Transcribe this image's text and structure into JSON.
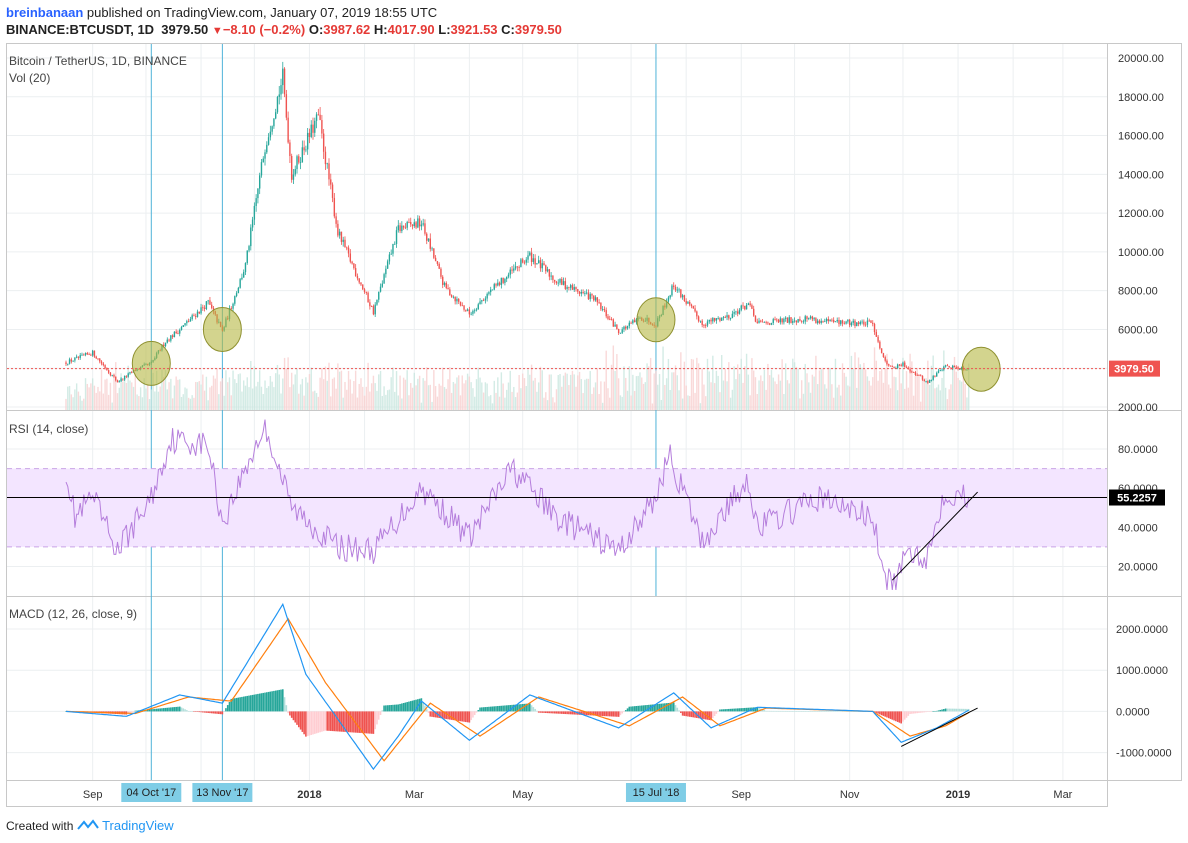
{
  "header": {
    "author": "breinbanaan",
    "published": " published on TradingView.com, January 07, 2019 18:55 UTC",
    "symbol": "BINANCE:BTCUSDT, 1D",
    "last": "3979.50",
    "change": "−8.10 (−0.2%)",
    "o_label": "O:",
    "o": "3987.62",
    "h_label": "H:",
    "h": "4017.90",
    "l_label": "L:",
    "l": "3921.53",
    "c_label": "C:",
    "c": "3979.50"
  },
  "panels": {
    "price_title": "Bitcoin / TetherUS, 1D, BINANCE",
    "vol_title": "Vol (20)",
    "rsi_title": "RSI (14, close)",
    "macd_title": "MACD (12, 26, close, 9)"
  },
  "colors": {
    "up": "#26a69a",
    "down": "#ef5350",
    "rsi": "#b57edc",
    "rsi_band": "#f3e5ff",
    "macd": "#2196f3",
    "signal": "#ff7f0e",
    "grid": "#eceff1",
    "marker_line": "#4fb3d9",
    "circle_fill": "#b5b843",
    "price_label": "#ef5350"
  },
  "x_axis_labels": [
    "Sep",
    "04 Oct '17",
    "13 Nov '17",
    "2018",
    "Mar",
    "May",
    "15 Jul '18",
    "Sep",
    "Nov",
    "2019",
    "Mar"
  ],
  "footer": {
    "created_with": "Created with",
    "brand": "TradingView"
  },
  "chart_data": [
    {
      "type": "candlestick",
      "title": "Bitcoin / TetherUS, 1D, BINANCE",
      "y_ticks": [
        "20000.00",
        "18000.00",
        "16000.00",
        "14000.00",
        "12000.00",
        "10000.00",
        "8000.00",
        "6000.00",
        "2000.00"
      ],
      "ylim": [
        2000,
        20500
      ],
      "last_price_label": "3979.50",
      "last_price": 3979.5,
      "anchors": [
        [
          "2017-08-17",
          4300
        ],
        [
          "2017-09-01",
          4800
        ],
        [
          "2017-09-15",
          3300
        ],
        [
          "2017-09-25",
          3900
        ],
        [
          "2017-10-04",
          4250
        ],
        [
          "2017-10-12",
          5400
        ],
        [
          "2017-10-20",
          6000
        ],
        [
          "2017-11-05",
          7400
        ],
        [
          "2017-11-13",
          5900
        ],
        [
          "2017-11-26",
          9300
        ],
        [
          "2017-12-07",
          15500
        ],
        [
          "2017-12-17",
          19000
        ],
        [
          "2017-12-22",
          14000
        ],
        [
          "2018-01-06",
          17000
        ],
        [
          "2018-01-17",
          11000
        ],
        [
          "2018-02-06",
          6900
        ],
        [
          "2018-02-20",
          11200
        ],
        [
          "2018-03-05",
          11500
        ],
        [
          "2018-03-18",
          8200
        ],
        [
          "2018-04-01",
          6800
        ],
        [
          "2018-04-12",
          7900
        ],
        [
          "2018-05-05",
          9800
        ],
        [
          "2018-05-20",
          8500
        ],
        [
          "2018-06-10",
          7600
        ],
        [
          "2018-06-24",
          5900
        ],
        [
          "2018-07-07",
          6600
        ],
        [
          "2018-07-15",
          6300
        ],
        [
          "2018-07-25",
          8300
        ],
        [
          "2018-08-10",
          6300
        ],
        [
          "2018-08-25",
          6700
        ],
        [
          "2018-09-05",
          7300
        ],
        [
          "2018-09-10",
          6300
        ],
        [
          "2018-10-10",
          6600
        ],
        [
          "2018-10-15",
          6400
        ],
        [
          "2018-11-14",
          6300
        ],
        [
          "2018-11-20",
          4500
        ],
        [
          "2018-11-25",
          4000
        ],
        [
          "2018-12-01",
          4200
        ],
        [
          "2018-12-15",
          3250
        ],
        [
          "2018-12-24",
          4100
        ],
        [
          "2019-01-07",
          3979.5
        ]
      ],
      "volume_series": "Vol (20)"
    },
    {
      "type": "line",
      "title": "RSI (14, close)",
      "y_ticks": [
        "80.0000",
        "60.0000",
        "40.0000",
        "20.0000"
      ],
      "ylim": [
        5,
        98
      ],
      "band": [
        30,
        70
      ],
      "current_label": "55.2257",
      "current": 55.2257,
      "anchors": [
        [
          "2017-08-17",
          70
        ],
        [
          "2017-08-22",
          45
        ],
        [
          "2017-09-01",
          55
        ],
        [
          "2017-09-15",
          28
        ],
        [
          "2017-10-04",
          55
        ],
        [
          "2017-10-15",
          85
        ],
        [
          "2017-11-05",
          82
        ],
        [
          "2017-11-13",
          42
        ],
        [
          "2017-11-26",
          70
        ],
        [
          "2017-12-07",
          92
        ],
        [
          "2017-12-22",
          50
        ],
        [
          "2018-01-17",
          30
        ],
        [
          "2018-02-06",
          28
        ],
        [
          "2018-03-05",
          60
        ],
        [
          "2018-04-01",
          35
        ],
        [
          "2018-04-25",
          70
        ],
        [
          "2018-05-20",
          45
        ],
        [
          "2018-06-24",
          28
        ],
        [
          "2018-07-15",
          55
        ],
        [
          "2018-07-22",
          78
        ],
        [
          "2018-08-10",
          32
        ],
        [
          "2018-09-05",
          65
        ],
        [
          "2018-09-10",
          40
        ],
        [
          "2018-10-15",
          55
        ],
        [
          "2018-11-14",
          45
        ],
        [
          "2018-11-20",
          15
        ],
        [
          "2018-11-25",
          10
        ],
        [
          "2018-12-05",
          28
        ],
        [
          "2018-12-15",
          25
        ],
        [
          "2018-12-24",
          58
        ],
        [
          "2019-01-07",
          55.2257
        ]
      ],
      "trendline": [
        [
          "2018-11-25",
          13
        ],
        [
          "2019-01-12",
          58
        ]
      ]
    },
    {
      "type": "macd",
      "title": "MACD (12, 26, close, 9)",
      "y_ticks": [
        "2000.0000",
        "1000.0000",
        "0.0000",
        "-1000.0000"
      ],
      "ylim": [
        -1750,
        2650
      ],
      "macd_anchors": [
        [
          "2017-08-17",
          0
        ],
        [
          "2017-09-20",
          -120
        ],
        [
          "2017-10-20",
          400
        ],
        [
          "2017-11-13",
          200
        ],
        [
          "2017-12-17",
          2600
        ],
        [
          "2017-12-30",
          900
        ],
        [
          "2018-02-06",
          -1400
        ],
        [
          "2018-02-20",
          -600
        ],
        [
          "2018-03-05",
          250
        ],
        [
          "2018-04-01",
          -700
        ],
        [
          "2018-05-05",
          400
        ],
        [
          "2018-06-24",
          -400
        ],
        [
          "2018-07-25",
          450
        ],
        [
          "2018-08-15",
          -400
        ],
        [
          "2018-09-10",
          100
        ],
        [
          "2018-11-14",
          0
        ],
        [
          "2018-11-30",
          -750
        ],
        [
          "2018-12-20",
          -400
        ],
        [
          "2019-01-07",
          30
        ]
      ],
      "signal_anchors": [
        [
          "2017-08-17",
          0
        ],
        [
          "2017-09-25",
          -50
        ],
        [
          "2017-10-25",
          350
        ],
        [
          "2017-11-18",
          250
        ],
        [
          "2017-12-20",
          2250
        ],
        [
          "2018-01-10",
          700
        ],
        [
          "2018-02-12",
          -1200
        ],
        [
          "2018-03-10",
          200
        ],
        [
          "2018-04-07",
          -600
        ],
        [
          "2018-05-10",
          350
        ],
        [
          "2018-06-30",
          -350
        ],
        [
          "2018-07-30",
          350
        ],
        [
          "2018-08-20",
          -350
        ],
        [
          "2018-09-15",
          80
        ],
        [
          "2018-11-14",
          0
        ],
        [
          "2018-12-05",
          -600
        ],
        [
          "2018-12-25",
          -350
        ],
        [
          "2019-01-07",
          -30
        ]
      ],
      "trendline": [
        [
          "2018-11-30",
          -850
        ],
        [
          "2019-01-12",
          80
        ]
      ]
    }
  ]
}
